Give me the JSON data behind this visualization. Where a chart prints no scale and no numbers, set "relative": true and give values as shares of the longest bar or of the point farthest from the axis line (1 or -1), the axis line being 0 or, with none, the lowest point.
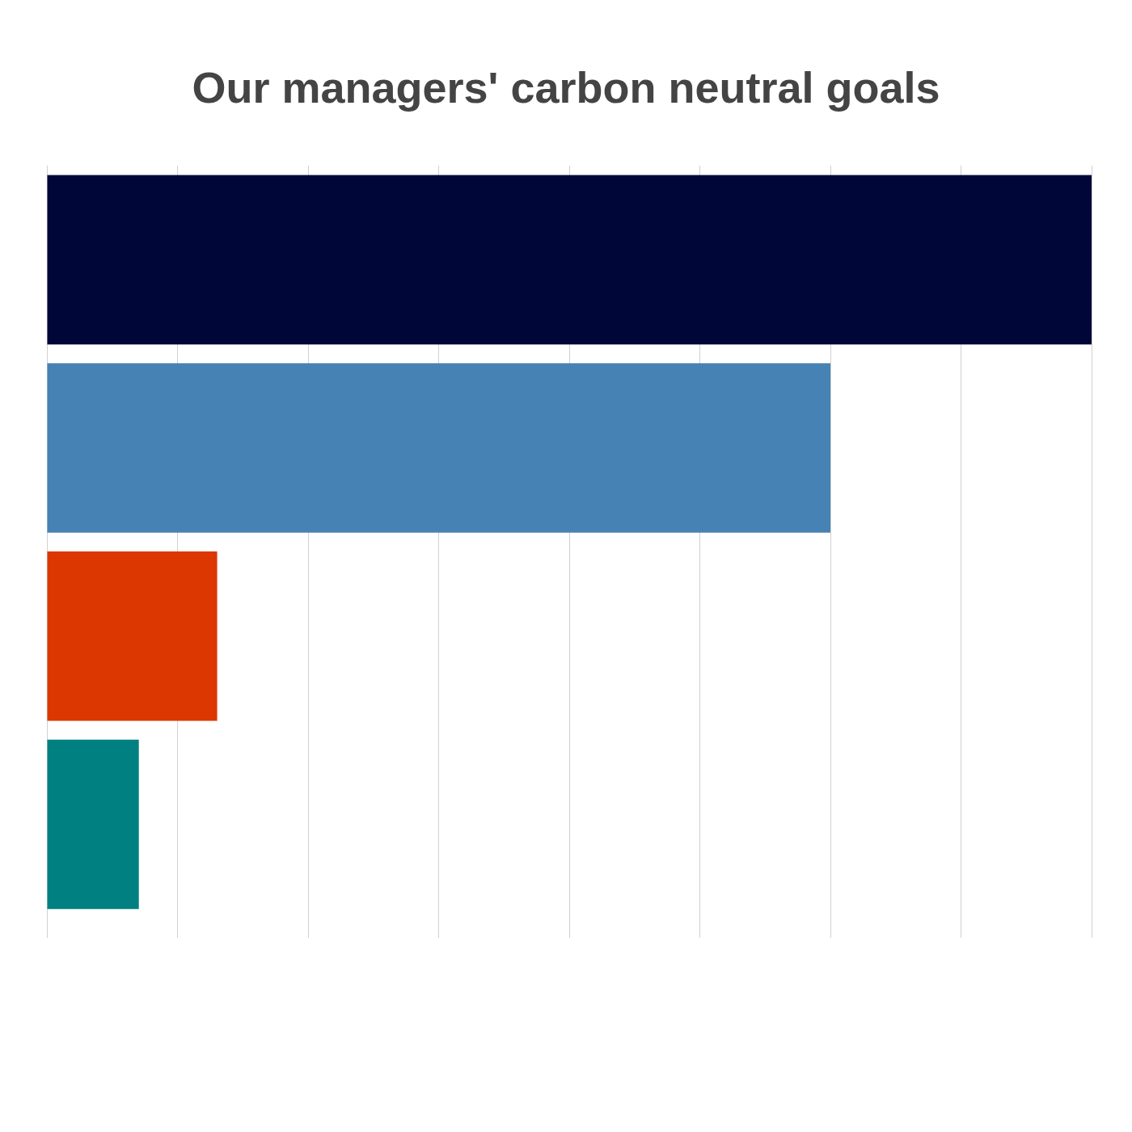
{
  "chart_data": {
    "type": "bar",
    "orientation": "horizontal",
    "relative": true,
    "title": "Our managers' carbon neutral goals",
    "categories": [
      null,
      null,
      null,
      null
    ],
    "values": [
      1,
      0.75,
      0.163,
      0.088
    ],
    "colors": [
      "#000638",
      "#4682b4",
      "#dc3700",
      "#008080"
    ],
    "grid": "x",
    "legend": false
  }
}
